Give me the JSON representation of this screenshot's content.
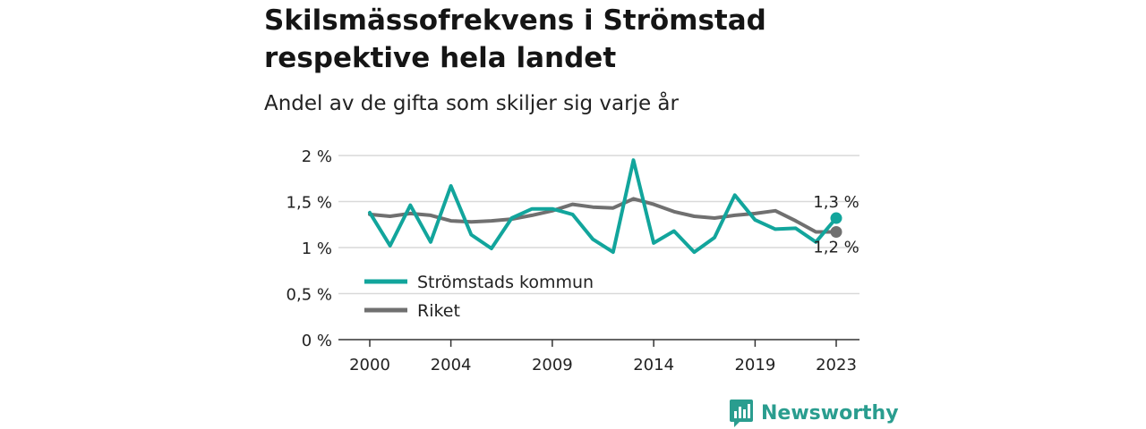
{
  "title": "Skilsmässofrekvens i Strömstad respektive hela landet",
  "subtitle": "Andel av de gifta som skiljer sig varje år",
  "brand": {
    "name": "Newsworthy",
    "icon": "newsworthy-logo-icon",
    "color": "#2a9d8f"
  },
  "chart_data": {
    "type": "line",
    "title": "Skilsmässofrekvens i Strömstad respektive hela landet",
    "subtitle": "Andel av de gifta som skiljer sig varje år",
    "xlabel": "",
    "ylabel": "",
    "x": [
      2000,
      2001,
      2002,
      2003,
      2004,
      2005,
      2006,
      2007,
      2008,
      2009,
      2010,
      2011,
      2012,
      2013,
      2014,
      2015,
      2016,
      2017,
      2018,
      2019,
      2020,
      2021,
      2022,
      2023
    ],
    "x_ticks": [
      2000,
      2004,
      2009,
      2014,
      2019,
      2023
    ],
    "x_tick_labels": [
      "2000",
      "2004",
      "2009",
      "2014",
      "2019",
      "2023"
    ],
    "y_ticks": [
      0,
      0.5,
      1,
      1.5,
      2
    ],
    "y_tick_labels": [
      "0 %",
      "0,5 %",
      "1 %",
      "1,5 %",
      "2 %"
    ],
    "ylim": [
      0,
      2
    ],
    "xlim": [
      2000,
      2023
    ],
    "grid": "horizontal",
    "legend_position": "lower-left",
    "series": [
      {
        "name": "Strömstads kommun",
        "color": "#12a59c",
        "values": [
          1.38,
          1.02,
          1.46,
          1.06,
          1.67,
          1.14,
          0.99,
          1.32,
          1.42,
          1.42,
          1.36,
          1.09,
          0.95,
          1.95,
          1.05,
          1.18,
          0.95,
          1.11,
          1.57,
          1.3,
          1.2,
          1.21,
          1.06,
          1.32
        ],
        "end_label": "1,3 %"
      },
      {
        "name": "Riket",
        "color": "#707070",
        "values": [
          1.36,
          1.34,
          1.37,
          1.35,
          1.29,
          1.28,
          1.29,
          1.31,
          1.35,
          1.4,
          1.47,
          1.44,
          1.43,
          1.53,
          1.47,
          1.39,
          1.34,
          1.32,
          1.35,
          1.37,
          1.4,
          1.29,
          1.17,
          1.17
        ],
        "end_label": "1,2 %"
      }
    ]
  }
}
